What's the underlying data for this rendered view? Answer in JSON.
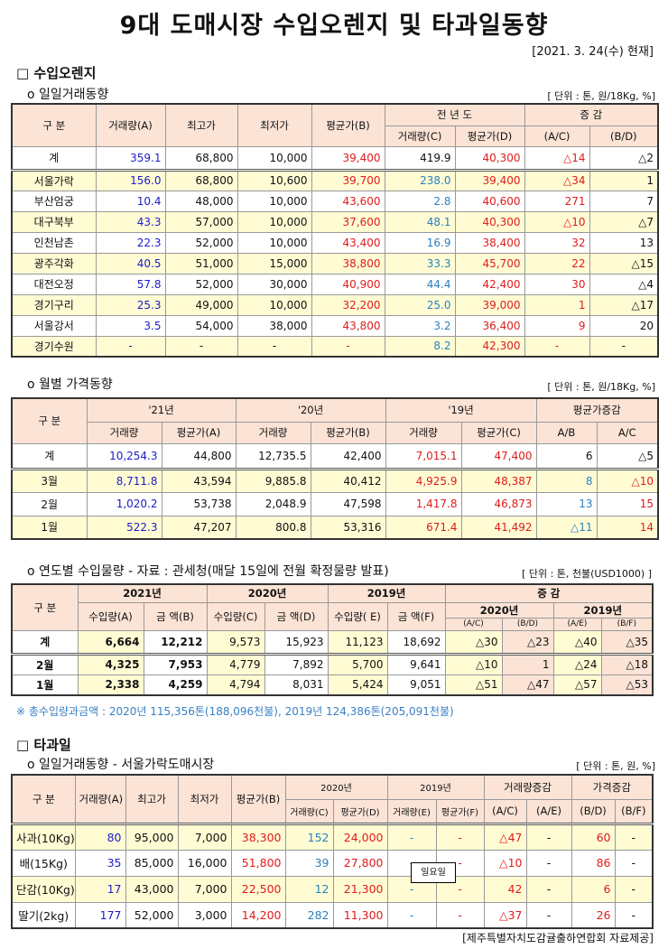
{
  "title": "9대 도매시장 수입오렌지 및 타과일동향",
  "date": "[2021. 3. 24(수) 현재]",
  "orange": {
    "heading": "□ 수입오렌지",
    "daily": {
      "subtitle": "o 일일거래동향",
      "unit": "[ 단위 : 톤, 원/18Kg, %]",
      "headers": {
        "division": "구    분",
        "vol_a": "거래량(A)",
        "max": "최고가",
        "min": "최저가",
        "avg_b": "평균가(B)",
        "prev_year": "전 년 도",
        "vol_c": "거래량(C)",
        "avg_d": "평균가(D)",
        "change": "증   감",
        "ac": "(A/C)",
        "bd": "(B/D)"
      },
      "rows": [
        [
          "계",
          "359.1",
          "68,800",
          "10,000",
          "39,400",
          "419.9",
          "40,300",
          "△14",
          "△2"
        ],
        [
          "서울가락",
          "156.0",
          "68,800",
          "10,600",
          "39,700",
          "238.0",
          "39,400",
          "△34",
          "1"
        ],
        [
          "부산엄궁",
          "10.4",
          "48,000",
          "10,000",
          "43,600",
          "2.8",
          "40,600",
          "271",
          "7"
        ],
        [
          "대구북부",
          "43.3",
          "57,000",
          "10,000",
          "37,600",
          "48.1",
          "40,300",
          "△10",
          "△7"
        ],
        [
          "인천남촌",
          "22.3",
          "52,000",
          "10,000",
          "43,400",
          "16.9",
          "38,400",
          "32",
          "13"
        ],
        [
          "광주각화",
          "40.5",
          "51,000",
          "15,000",
          "38,800",
          "33.3",
          "45,700",
          "22",
          "△15"
        ],
        [
          "대전오정",
          "57.8",
          "52,000",
          "30,000",
          "40,900",
          "44.4",
          "42,400",
          "30",
          "△4"
        ],
        [
          "경기구리",
          "25.3",
          "49,000",
          "10,000",
          "32,200",
          "25.0",
          "39,000",
          "1",
          "△17"
        ],
        [
          "서울강서",
          "3.5",
          "54,000",
          "38,000",
          "43,800",
          "3.2",
          "36,400",
          "9",
          "20"
        ],
        [
          "경기수원",
          "-",
          "-",
          "-",
          "-",
          "8.2",
          "42,300",
          "-",
          "-"
        ]
      ]
    },
    "monthly": {
      "subtitle": "o 월별 가격동향",
      "unit": "[ 단위 : 톤, 원/18Kg, %]",
      "headers": {
        "division": "구    분",
        "y21": "'21년",
        "y20": "'20년",
        "y19": "'19년",
        "avg_change": "평균가증감",
        "vol": "거래량",
        "avg_a": "평균가(A)",
        "avg_b": "평균가(B)",
        "avg_c": "평균가(C)",
        "ab": "A/B",
        "ac": "A/C"
      },
      "rows": [
        [
          "계",
          "10,254.3",
          "44,800",
          "12,735.5",
          "42,400",
          "7,015.1",
          "47,400",
          "6",
          "△5"
        ],
        [
          "3월",
          "8,711.8",
          "43,594",
          "9,885.8",
          "40,412",
          "4,925.9",
          "48,387",
          "8",
          "△10"
        ],
        [
          "2월",
          "1,020.2",
          "53,738",
          "2,048.9",
          "47,598",
          "1,417.8",
          "46,873",
          "13",
          "15"
        ],
        [
          "1월",
          "522.3",
          "47,207",
          "800.8",
          "53,316",
          "671.4",
          "41,492",
          "△11",
          "14"
        ]
      ]
    },
    "yearly": {
      "subtitle": "o 연도별 수입물량 - 자료 : 관세청(매달 15일에 전월 확정물량 발표)",
      "unit": "[ 단위 : 톤, 천불(USD1000) ]",
      "headers": {
        "division": "구 분",
        "y2021": "2021년",
        "y2020": "2020년",
        "y2019": "2019년",
        "change": "증    감",
        "ch2020": "2020년",
        "ch2019": "2019년",
        "imp_a": "수입량(A)",
        "amt_b": "금  액(B)",
        "imp_c": "수입량(C)",
        "amt_d": "금  액(D)",
        "imp_e": "수입량( E)",
        "amt_f": "금  액(F)",
        "ac": "(A/C)",
        "bd": "(B/D)",
        "ae": "(A/E)",
        "bf": "(B/F)"
      },
      "rows": [
        [
          "계",
          "6,664",
          "12,212",
          "9,573",
          "15,923",
          "11,123",
          "18,692",
          "△30",
          "△23",
          "△40",
          "△35"
        ],
        [
          "2월",
          "4,325",
          "7,953",
          "4,779",
          "7,892",
          "5,700",
          "9,641",
          "△10",
          "1",
          "△24",
          "△18"
        ],
        [
          "1월",
          "2,338",
          "4,259",
          "4,794",
          "8,031",
          "5,424",
          "9,051",
          "△51",
          "△47",
          "△57",
          "△53"
        ]
      ],
      "note": "※ 총수입량과금액 : 2020년 115,356톤(188,096천불),  2019년 124,386톤(205,091천불)"
    }
  },
  "fruit": {
    "heading": "□ 타과일",
    "subtitle": "o 일일거래동향 - 서울가락도매시장",
    "unit": "[ 단위 : 톤, 원, %]",
    "headers": {
      "division": "구 분",
      "vol_a": "거래량(A)",
      "max": "최고가",
      "min": "최저가",
      "avg_b": "평균가(B)",
      "y2020": "2020년",
      "y2019": "2019년",
      "vol_change": "거래량증감",
      "price_change": "가격증감",
      "vol_c": "거래량(C)",
      "avg_d": "평균가(D)",
      "vol_e": "거래량(E)",
      "avg_f": "평균가(F)",
      "ac": "(A/C)",
      "ae": "(A/E)",
      "bd": "(B/D)",
      "bf": "(B/F)"
    },
    "rows": [
      [
        "사과(10Kg)",
        "80",
        "95,000",
        "7,000",
        "38,300",
        "152",
        "24,000",
        "-",
        "-",
        "△47",
        "-",
        "60",
        "-"
      ],
      [
        "배(15Kg)",
        "35",
        "85,000",
        "16,000",
        "51,800",
        "39",
        "27,800",
        "-",
        "-",
        "△10",
        "-",
        "86",
        "-"
      ],
      [
        "단감(10Kg)",
        "17",
        "43,000",
        "7,000",
        "22,500",
        "12",
        "21,300",
        "-",
        "-",
        "42",
        "-",
        "6",
        "-"
      ],
      [
        "딸기(2kg)",
        "177",
        "52,000",
        "3,000",
        "14,200",
        "282",
        "11,300",
        "-",
        "-",
        "△37",
        "-",
        "26",
        "-"
      ]
    ],
    "tooltip": "일요일"
  },
  "footer": "[제주특별자치도감귤출하연합회 자료제공]"
}
